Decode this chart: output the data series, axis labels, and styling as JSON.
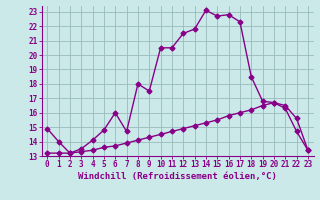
{
  "xlabel": "Windchill (Refroidissement éolien,°C)",
  "ylabel": "",
  "background_color": "#cce9e9",
  "line_color": "#880088",
  "grid_color": "#99bbbb",
  "xlim": [
    -0.5,
    23.5
  ],
  "ylim": [
    13,
    23.4
  ],
  "xticks": [
    0,
    1,
    2,
    3,
    4,
    5,
    6,
    7,
    8,
    9,
    10,
    11,
    12,
    13,
    14,
    15,
    16,
    17,
    18,
    19,
    20,
    21,
    22,
    23
  ],
  "yticks": [
    13,
    14,
    15,
    16,
    17,
    18,
    19,
    20,
    21,
    22,
    23
  ],
  "line1_x": [
    0,
    1,
    2,
    3,
    4,
    5,
    6,
    7,
    8,
    9,
    10,
    11,
    12,
    13,
    14,
    15,
    16,
    17,
    18,
    19,
    20,
    21,
    22,
    23
  ],
  "line1_y": [
    14.9,
    14.0,
    13.2,
    13.5,
    14.1,
    14.8,
    16.0,
    14.7,
    18.0,
    17.5,
    20.5,
    20.5,
    21.5,
    21.8,
    23.1,
    22.7,
    22.8,
    22.3,
    18.5,
    16.8,
    16.7,
    16.3,
    14.7,
    13.4
  ],
  "line2_x": [
    0,
    1,
    2,
    3,
    4,
    5,
    6,
    7,
    8,
    9,
    10,
    11,
    12,
    13,
    14,
    15,
    16,
    17,
    18,
    19,
    20,
    21,
    22,
    23
  ],
  "line2_y": [
    13.2,
    13.2,
    13.2,
    13.3,
    13.4,
    13.6,
    13.7,
    13.9,
    14.1,
    14.3,
    14.5,
    14.7,
    14.9,
    15.1,
    15.3,
    15.5,
    15.8,
    16.0,
    16.2,
    16.5,
    16.7,
    16.5,
    15.6,
    13.4
  ],
  "marker": "D",
  "markersize": 2.5,
  "linewidth": 1.0,
  "label_fontsize": 6.5,
  "tick_fontsize": 5.5
}
